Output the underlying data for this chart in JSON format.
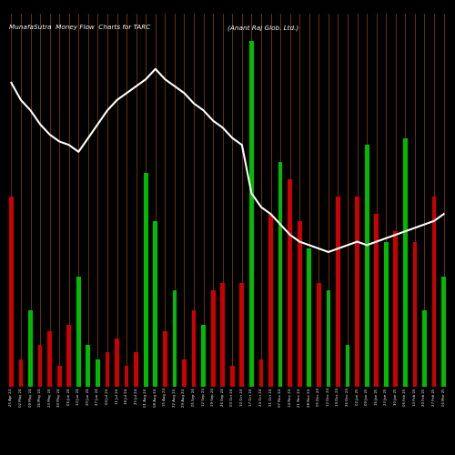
{
  "title_left": "MunafaSutra  Money Flow  Charts for TARC",
  "title_right": "(Anant Raj Glob. Ltd.)",
  "bg_color": "#000000",
  "bar_color_pos": "#00bb00",
  "bar_color_neg": "#cc0000",
  "grid_color": "#7B3A00",
  "line_color": "#ffffff",
  "bar_values": [
    55,
    8,
    22,
    12,
    16,
    6,
    18,
    32,
    12,
    8,
    10,
    14,
    6,
    10,
    62,
    48,
    16,
    28,
    8,
    22,
    18,
    28,
    30,
    6,
    30,
    100,
    8,
    50,
    65,
    60,
    48,
    40,
    30,
    28,
    55,
    12,
    55,
    70,
    50,
    42,
    45,
    72,
    42,
    22,
    55,
    32
  ],
  "bar_colors": [
    "neg",
    "neg",
    "pos",
    "neg",
    "neg",
    "neg",
    "neg",
    "pos",
    "pos",
    "pos",
    "neg",
    "neg",
    "neg",
    "neg",
    "pos",
    "pos",
    "neg",
    "pos",
    "neg",
    "neg",
    "pos",
    "neg",
    "neg",
    "neg",
    "neg",
    "pos",
    "neg",
    "neg",
    "pos",
    "neg",
    "neg",
    "pos",
    "neg",
    "pos",
    "neg",
    "pos",
    "neg",
    "pos",
    "neg",
    "pos",
    "neg",
    "pos",
    "neg",
    "pos",
    "neg",
    "pos"
  ],
  "line_values": [
    88,
    83,
    80,
    76,
    73,
    71,
    70,
    68,
    72,
    76,
    80,
    83,
    85,
    87,
    89,
    92,
    89,
    87,
    85,
    82,
    80,
    77,
    75,
    72,
    70,
    56,
    52,
    50,
    47,
    44,
    42,
    41,
    40,
    39,
    40,
    41,
    42,
    41,
    42,
    43,
    44,
    45,
    46,
    47,
    48,
    50
  ],
  "xlabels": [
    "25 Apr 24",
    "02 May 24",
    "09 May 24",
    "16 May 24",
    "23 May 24",
    "30 May 24",
    "06 Jun 24",
    "13 Jun 24",
    "20 Jun 24",
    "27 Jun 24",
    "04 Jul 24",
    "11 Jul 24",
    "18 Jul 24",
    "25 Jul 24",
    "01 Aug 24",
    "08 Aug 24",
    "15 Aug 24",
    "22 Aug 24",
    "29 Aug 24",
    "05 Sep 24",
    "12 Sep 24",
    "19 Sep 24",
    "26 Sep 24",
    "03 Oct 24",
    "10 Oct 24",
    "17 Oct 24",
    "24 Oct 24",
    "31 Oct 24",
    "07 Nov 24",
    "14 Nov 24",
    "21 Nov 24",
    "28 Nov 24",
    "05 Dec 24",
    "12 Dec 24",
    "19 Dec 24",
    "26 Dec 24",
    "02 Jan 25",
    "09 Jan 25",
    "16 Jan 25",
    "23 Jan 25",
    "30 Jan 25",
    "06 Feb 25",
    "13 Feb 25",
    "20 Feb 25",
    "27 Feb 25",
    "06 Mar 25"
  ]
}
